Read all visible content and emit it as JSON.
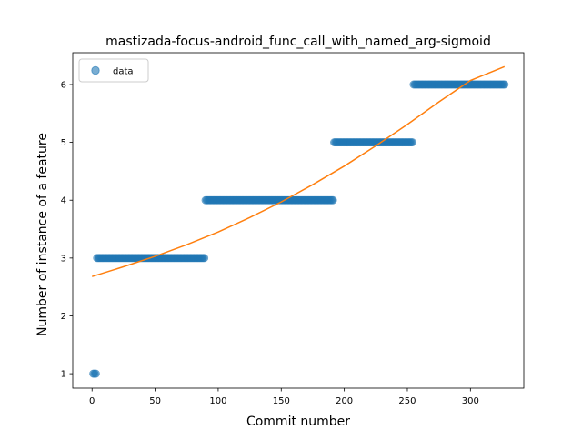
{
  "chart_data": {
    "type": "scatter",
    "title": "mastizada-focus-android_func_call_with_named_arg-sigmoid",
    "xlabel": "Commit number",
    "ylabel": "Number of instance of a feature",
    "xlim": [
      -15.3,
      342.3
    ],
    "ylim": [
      0.75,
      6.55
    ],
    "xticks": [
      0,
      50,
      100,
      150,
      200,
      250,
      300
    ],
    "yticks": [
      1,
      2,
      3,
      4,
      5,
      6
    ],
    "legend": {
      "position": "upper-left",
      "entries": [
        "data"
      ]
    },
    "colors": {
      "data": "#1f77b4",
      "fit": "#ff7f0e"
    },
    "series": [
      {
        "name": "data",
        "style": "markers",
        "segments": [
          {
            "x_start": 1,
            "x_end": 3,
            "step": 1,
            "y": 1
          },
          {
            "x_start": 4,
            "x_end": 89,
            "step": 1,
            "y": 3
          },
          {
            "x_start": 90,
            "x_end": 191,
            "step": 1,
            "y": 4
          },
          {
            "x_start": 192,
            "x_end": 254,
            "step": 1,
            "y": 5
          },
          {
            "x_start": 255,
            "x_end": 327,
            "step": 1,
            "y": 6
          }
        ]
      },
      {
        "style": "line",
        "x": [
          0,
          25,
          50,
          75,
          100,
          125,
          150,
          175,
          200,
          225,
          250,
          275,
          300,
          327
        ],
        "y": [
          2.68,
          2.85,
          3.03,
          3.23,
          3.45,
          3.7,
          3.97,
          4.27,
          4.59,
          4.94,
          5.31,
          5.7,
          6.07,
          6.31
        ]
      }
    ]
  }
}
